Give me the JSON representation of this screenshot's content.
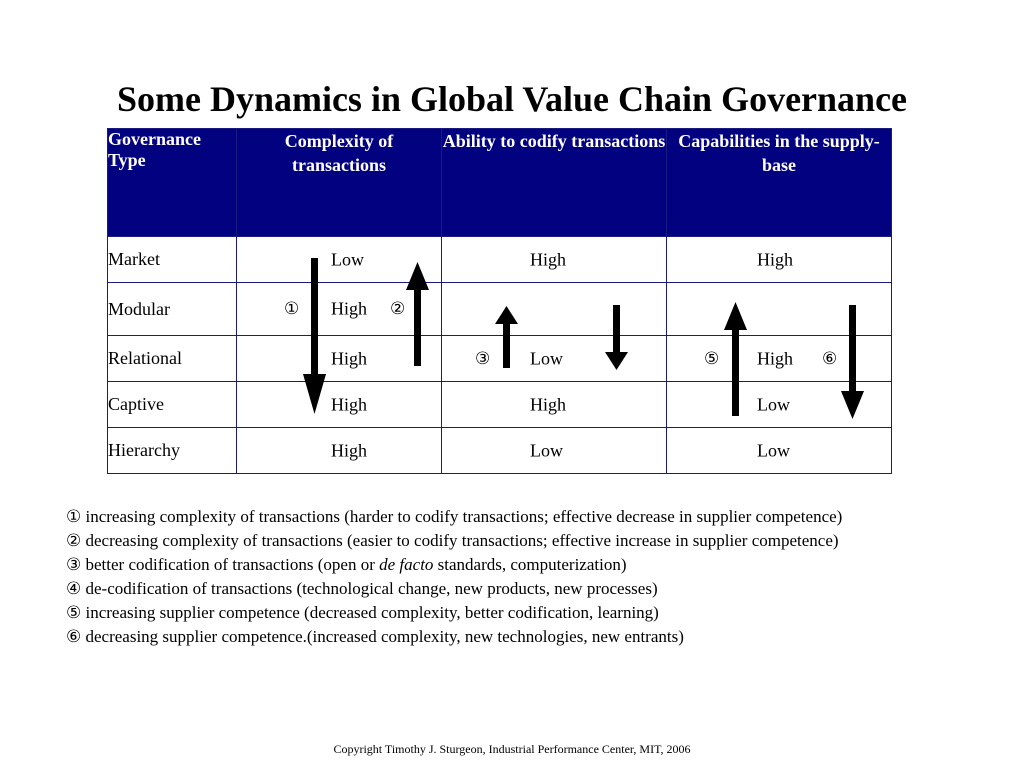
{
  "title": "Some Dynamics in Global Value Chain Governance",
  "table": {
    "headers": {
      "governance_type": "Governance Type",
      "complexity": "Complexity of transactions",
      "codify": "Ability to codify transactions",
      "capabilities": "Capabilities in the supply-base"
    },
    "rows": [
      {
        "type": "Market",
        "complexity": "Low",
        "codify": "High",
        "capabilities": "High"
      },
      {
        "type": "Modular",
        "complexity": "High",
        "codify": "",
        "capabilities": ""
      },
      {
        "type": "Relational",
        "complexity": "High",
        "codify": "Low",
        "capabilities": "High"
      },
      {
        "type": "Captive",
        "complexity": "High",
        "codify": "High",
        "capabilities": "Low"
      },
      {
        "type": "Hierarchy",
        "complexity": "High",
        "codify": "Low",
        "capabilities": "Low"
      }
    ],
    "markers": {
      "m1": "①",
      "m2": "②",
      "m3": "③",
      "m5": "⑤",
      "m6": "⑥"
    }
  },
  "notes": [
    {
      "marker": "①",
      "text": "increasing complexity of transactions (harder to codify transactions; effective decrease in supplier competence)"
    },
    {
      "marker": "②",
      "text": "decreasing complexity of transactions (easier to codify transactions; effective increase in supplier competence)"
    },
    {
      "marker": "③",
      "pre": "better codification of transactions (open or ",
      "italic": "de facto",
      "post": " standards, computerization)"
    },
    {
      "marker": "④",
      "text": "de-codification of transactions (technological change, new products, new processes)"
    },
    {
      "marker": "⑤",
      "text": "increasing supplier competence (decreased complexity, better codification, learning)"
    },
    {
      "marker": "⑥",
      "text": "decreasing supplier competence.(increased complexity, new technologies, new entrants)"
    }
  ],
  "footer": "Copyright Timothy J.  Sturgeon, Industrial Performance Center, MIT, 2006"
}
